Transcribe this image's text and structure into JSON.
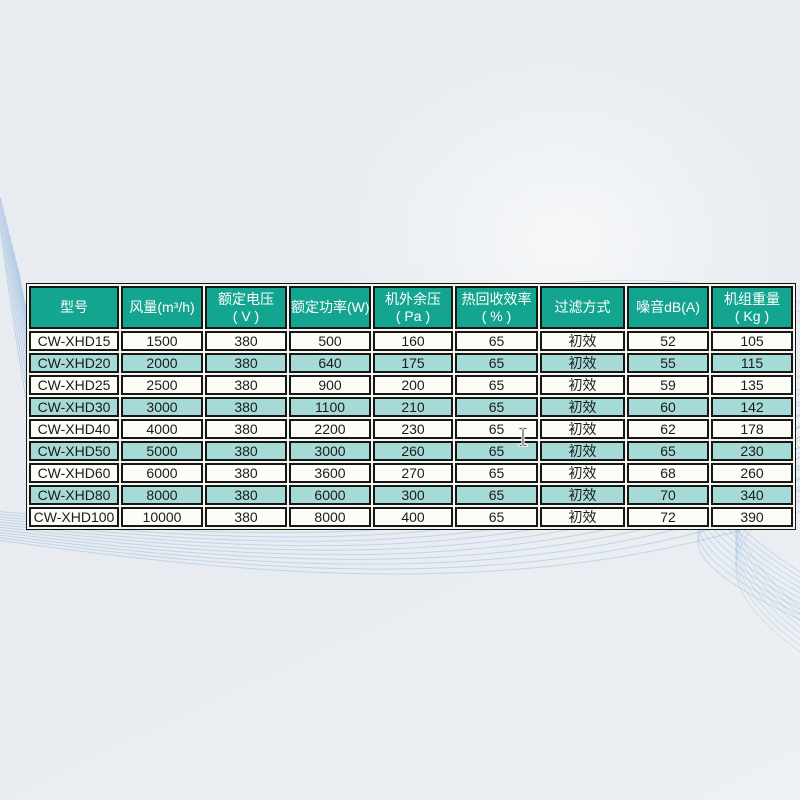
{
  "table": {
    "columns": [
      {
        "line1": "型号",
        "line2": ""
      },
      {
        "line1": "风量(m³/h)",
        "line2": ""
      },
      {
        "line1": "额定电压",
        "line2": "( V )"
      },
      {
        "line1": "额定功率(W)",
        "line2": ""
      },
      {
        "line1": "机外余压",
        "line2": "( Pa )"
      },
      {
        "line1": "热回收效率",
        "line2": "( % )"
      },
      {
        "line1": "过滤方式",
        "line2": ""
      },
      {
        "line1": "噪音dB(A)",
        "line2": ""
      },
      {
        "line1": "机组重量",
        "line2": "( Kg )"
      }
    ],
    "rows": [
      [
        "CW-XHD15",
        "1500",
        "380",
        "500",
        "160",
        "65",
        "初效",
        "52",
        "105"
      ],
      [
        "CW-XHD20",
        "2000",
        "380",
        "640",
        "175",
        "65",
        "初效",
        "55",
        "115"
      ],
      [
        "CW-XHD25",
        "2500",
        "380",
        "900",
        "200",
        "65",
        "初效",
        "59",
        "135"
      ],
      [
        "CW-XHD30",
        "3000",
        "380",
        "1100",
        "210",
        "65",
        "初效",
        "60",
        "142"
      ],
      [
        "CW-XHD40",
        "4000",
        "380",
        "2200",
        "230",
        "65",
        "初效",
        "62",
        "178"
      ],
      [
        "CW-XHD50",
        "5000",
        "380",
        "3000",
        "260",
        "65",
        "初效",
        "65",
        "230"
      ],
      [
        "CW-XHD60",
        "6000",
        "380",
        "3600",
        "270",
        "65",
        "初效",
        "68",
        "260"
      ],
      [
        "CW-XHD80",
        "8000",
        "380",
        "6000",
        "300",
        "65",
        "初效",
        "70",
        "340"
      ],
      [
        "CW-XHD100",
        "10000",
        "380",
        "8000",
        "400",
        "65",
        "初效",
        "72",
        "390"
      ]
    ]
  },
  "colors": {
    "header_bg": "#14a591",
    "header_text": "#ffffff",
    "row_bg": "#fdfdf7",
    "row_alt_bg": "#a6dad6",
    "cell_text": "#1b1b1b",
    "border": "#171717",
    "page_bg": "#e9edf1",
    "wave": "#8fb6de"
  }
}
